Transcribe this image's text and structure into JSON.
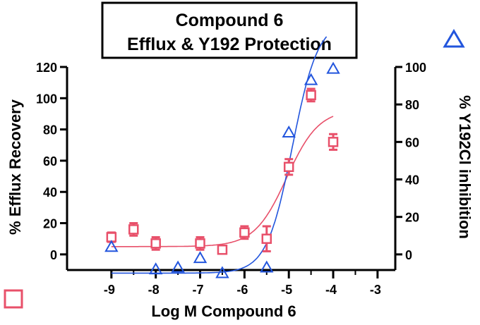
{
  "chart_data": {
    "type": "scatter",
    "title_lines": [
      "Compound 6",
      "Efflux & Y192 Protection"
    ],
    "xlabel": "Log M Compound 6",
    "ylabel_left": "% Efflux Recovery",
    "ylabel_right": "% Y192Cl inhibition",
    "xlim": [
      -10,
      -2.6
    ],
    "x_ticks": [
      -9,
      -8,
      -7,
      -6,
      -5,
      -4,
      -3
    ],
    "y_left_lim": [
      -10,
      120
    ],
    "y_left_ticks": [
      0,
      20,
      40,
      60,
      80,
      100,
      120
    ],
    "y_right_lim": [
      -8.33,
      100
    ],
    "y_right_ticks": [
      0,
      20,
      40,
      60,
      80,
      100
    ],
    "grid": false,
    "series": [
      {
        "axis": "left",
        "marker": "square",
        "color": "#e8506a",
        "points": [
          {
            "x": -9.0,
            "y": 11,
            "err": 3
          },
          {
            "x": -8.5,
            "y": 16,
            "err": 4
          },
          {
            "x": -8.0,
            "y": 7,
            "err": 4
          },
          {
            "x": -7.0,
            "y": 7,
            "err": 4
          },
          {
            "x": -6.5,
            "y": 3,
            "err": 0
          },
          {
            "x": -6.0,
            "y": 14,
            "err": 4
          },
          {
            "x": -5.5,
            "y": 10,
            "err": 8
          },
          {
            "x": -5.0,
            "y": 56,
            "err": 5
          },
          {
            "x": -4.5,
            "y": 102,
            "err": 4
          },
          {
            "x": -4.0,
            "y": 72,
            "err": 5
          }
        ],
        "fit": {
          "bottom": 5,
          "top": 93,
          "log_ec50": -5.05,
          "hill": 1.2,
          "x_range": [
            -9,
            -4
          ]
        }
      },
      {
        "axis": "right",
        "marker": "triangle",
        "color": "#2255dd",
        "points": [
          {
            "x": -9.0,
            "y": 4
          },
          {
            "x": -8.0,
            "y": -8
          },
          {
            "x": -7.5,
            "y": -7
          },
          {
            "x": -7.0,
            "y": -2
          },
          {
            "x": -6.5,
            "y": -10
          },
          {
            "x": -5.5,
            "y": -7
          },
          {
            "x": -5.0,
            "y": 65
          },
          {
            "x": -4.5,
            "y": 93
          },
          {
            "x": -4.0,
            "y": 99
          }
        ],
        "fit": {
          "bottom": -10,
          "top": 125,
          "log_ec50": -4.92,
          "hill": 1.5,
          "x_range": [
            -9,
            -4.15
          ]
        }
      }
    ]
  }
}
